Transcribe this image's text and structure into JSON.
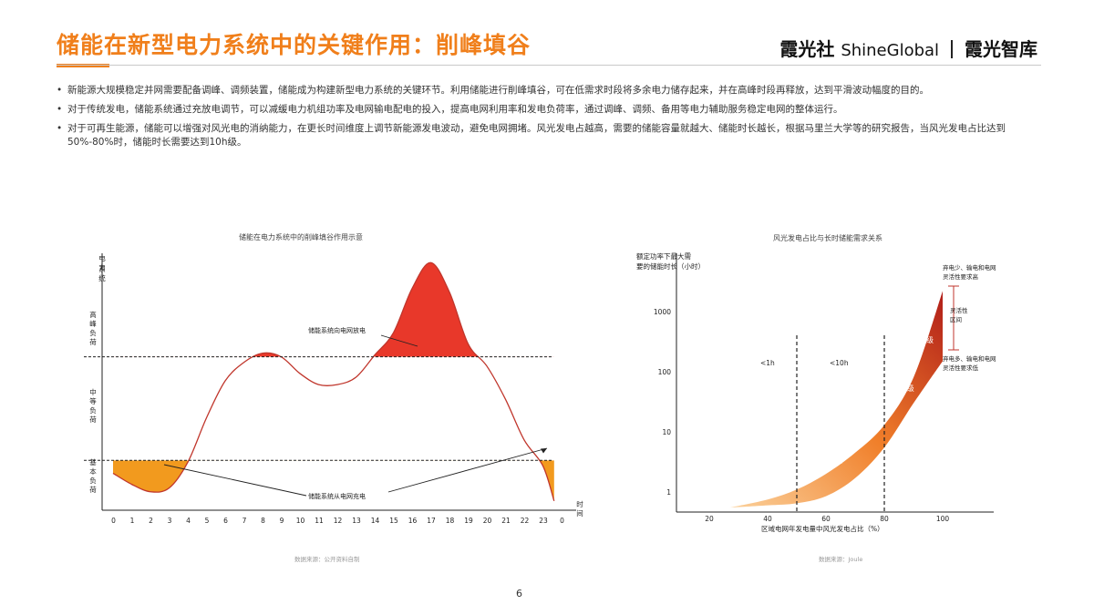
{
  "header": {
    "title": "储能在新型电力系统中的关键作用：削峰填谷",
    "brand_left": "霞光社",
    "brand_mid": "ShineGlobal",
    "brand_right": "霞光智库"
  },
  "bullets": [
    "新能源大规模稳定并网需要配备调峰、调频装置，储能成为构建新型电力系统的关键环节。利用储能进行削峰填谷，可在低需求时段将多余电力储存起来，并在高峰时段再释放，达到平滑波动幅度的目的。",
    "对于传统发电，储能系统通过充放电调节，可以减缓电力机组功率及电网输电配电的投入，提高电网利用率和发电负荷率，通过调峰、调频、备用等电力辅助服务稳定电网的整体运行。",
    "对于可再生能源，储能可以增强对风光电的消纳能力，在更长时间维度上调节新能源发电波动，避免电网拥堵。风光发电占越高，需要的储能容量就越大、储能时长越长，根据马里兰大学等的研究报告，当风光发电占比达到50%-80%时，储能时长需要达到10h级。"
  ],
  "chart_data": [
    {
      "type": "line",
      "title": "储能在电力系统中的削峰填谷作用示意",
      "ylabel": "电力系统负荷",
      "xlabel": "时间",
      "x_ticks": [
        "0",
        "1",
        "2",
        "3",
        "4",
        "5",
        "6",
        "7",
        "8",
        "9",
        "10",
        "11",
        "12",
        "13",
        "14",
        "15",
        "16",
        "17",
        "18",
        "19",
        "20",
        "21",
        "22",
        "23",
        "0"
      ],
      "y_bands": [
        "高峰负荷",
        "中等负荷",
        "基本负荷"
      ],
      "load_curve": {
        "x": [
          0,
          1,
          2,
          3,
          4,
          5,
          6,
          7,
          8,
          9,
          10,
          11,
          12,
          13,
          14,
          15,
          16,
          17,
          18,
          19,
          20,
          21,
          22,
          23,
          23.6
        ],
        "y": [
          0.2,
          0.14,
          0.1,
          0.12,
          0.26,
          0.5,
          0.7,
          0.8,
          0.85,
          0.83,
          0.74,
          0.68,
          0.68,
          0.72,
          0.84,
          0.96,
          1.2,
          1.34,
          1.18,
          0.9,
          0.78,
          0.6,
          0.38,
          0.24,
          0.05
        ]
      },
      "peak_threshold": 0.83,
      "base_threshold": 0.27,
      "annotations": [
        "储能系统向电网放电",
        "储能系统从电网充电"
      ],
      "colors": {
        "line": "#c0362c",
        "discharge": "#e8382a",
        "charge": "#f29a1e"
      },
      "source": "数据来源：公开资料自制"
    },
    {
      "type": "area",
      "title": "风光发电占比与长时储能需求关系",
      "ylabel": "额定功率下最大需要的储能时长（小时）",
      "xlabel": "区域电网年发电量中风光发电占比（%）",
      "x_ticks": [
        "20",
        "40",
        "60",
        "80",
        "100"
      ],
      "y_ticks": [
        "1",
        "10",
        "100",
        "1000"
      ],
      "y_scale": "log",
      "xlim": [
        20,
        100
      ],
      "upper_edge": {
        "x": [
          27,
          40,
          50,
          60,
          70,
          80,
          90,
          100
        ],
        "y": [
          0.55,
          0.75,
          1.1,
          2.0,
          4.5,
          13,
          80,
          2200
        ]
      },
      "lower_edge": {
        "x": [
          27,
          40,
          50,
          60,
          70,
          80,
          90,
          100
        ],
        "y": [
          0.55,
          0.6,
          0.65,
          0.85,
          1.7,
          5.5,
          30,
          150
        ]
      },
      "vlines": [
        50,
        80
      ],
      "region_labels": [
        "<1h",
        "<10h"
      ],
      "zone_labels": [
        "小时级",
        "天/周级",
        "季度级"
      ],
      "right_notes": [
        "弃电少、输电和电网灵活性要求高",
        "灵活性区间",
        "弃电多、输电和电网灵活性要求低"
      ],
      "colors": {
        "light": "#fbd19b",
        "mid": "#f07f2a",
        "dark": "#b11e19"
      },
      "source": "数据来源：Joule"
    }
  ],
  "page": {
    "number": "6"
  }
}
